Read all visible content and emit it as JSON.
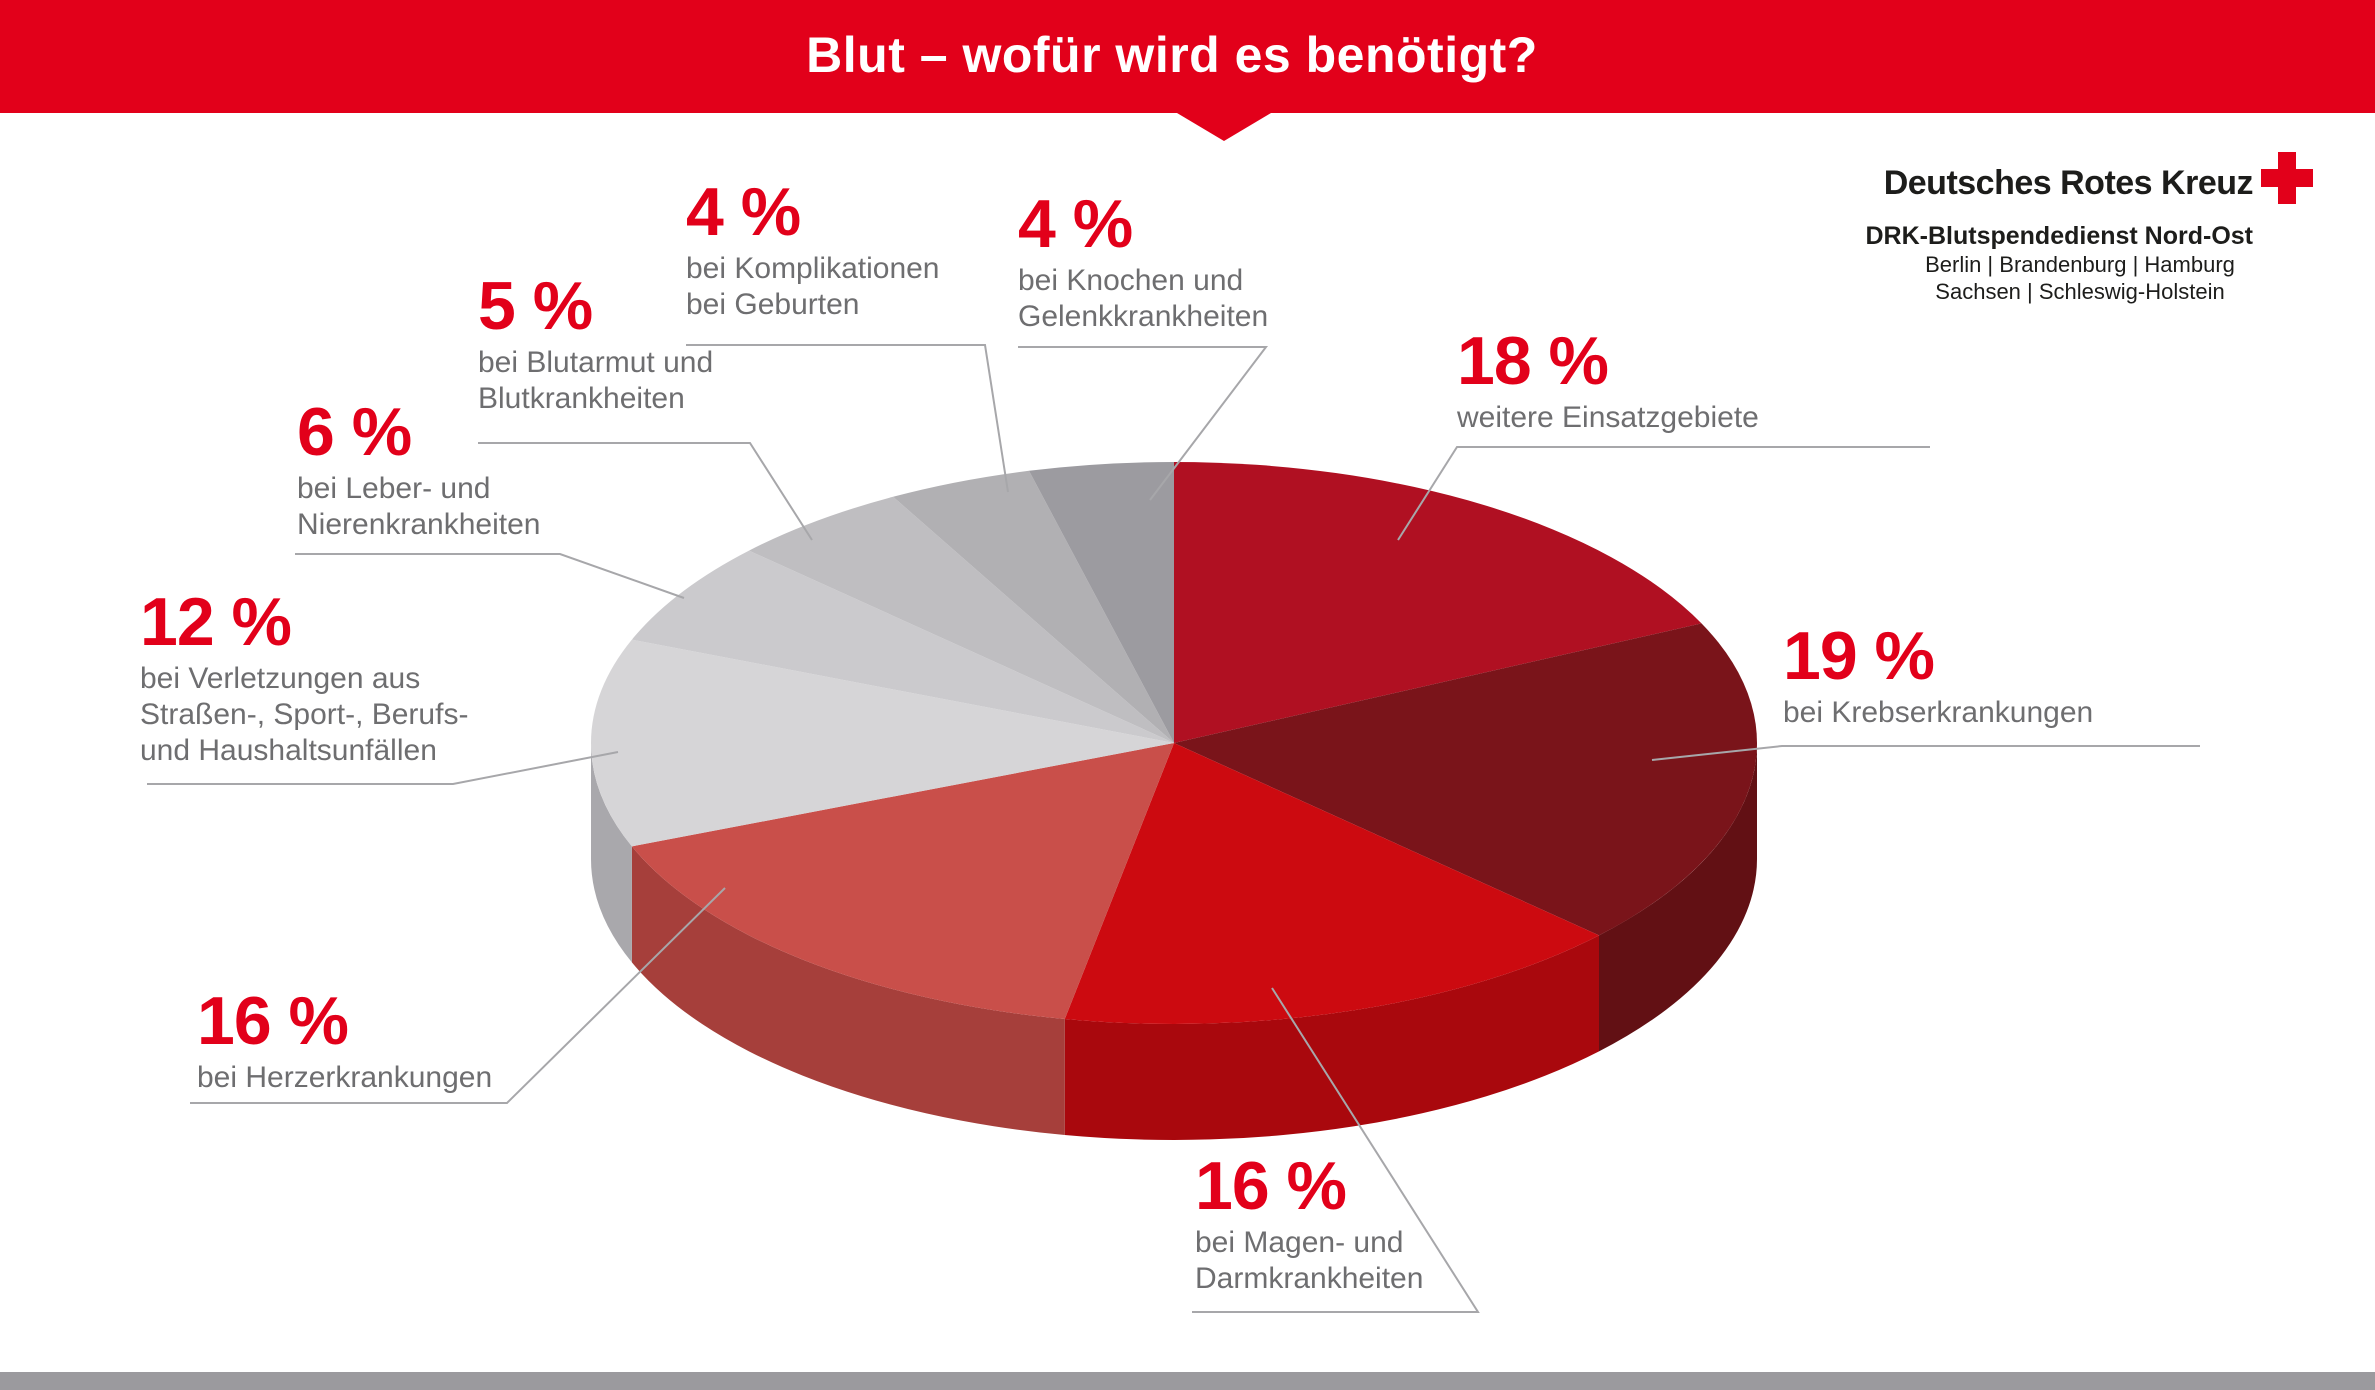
{
  "header": {
    "title": "Blut – wofür wird es benötigt?",
    "bar_color": "#e2001a"
  },
  "logo": {
    "org": "Deutsches Rotes Kreuz",
    "suborg": "DRK-Blutspendedienst Nord-Ost",
    "regions_line1": "Berlin | Brandenburg | Hamburg",
    "regions_line2": "Sachsen | Schleswig-Holstein",
    "cross_icon_color": "#e2001a"
  },
  "chart_data": {
    "type": "pie",
    "style": "3d-ellipse",
    "title": "Blut – wofür wird es benötigt?",
    "unit": "%",
    "total": 100,
    "start_angle": "12 o'clock",
    "direction": "clockwise",
    "legend_position": "callouts-around-pie",
    "grid": false,
    "slices": [
      {
        "id": "weitere-einsatzgebiete",
        "value": 18,
        "pct": "18 %",
        "lines": [
          "weitere Einsatzgebiete"
        ],
        "label": "weitere Einsatzgebiete",
        "color": "#b01022",
        "wall": "#8d0d1b"
      },
      {
        "id": "krebserkrankungen",
        "value": 19,
        "pct": "19 %",
        "lines": [
          "bei Krebserkrankungen"
        ],
        "label": "bei Krebserkrankungen",
        "color": "#7a141a",
        "wall": "#621014"
      },
      {
        "id": "magen-darm",
        "value": 16,
        "pct": "16 %",
        "lines": [
          "bei Magen- und",
          "Darmkrankheiten"
        ],
        "label": "bei Magen- und Darmkrankheiten",
        "color": "#cc0a10",
        "wall": "#a9080d"
      },
      {
        "id": "herz",
        "value": 16,
        "pct": "16 %",
        "lines": [
          "bei Herzerkrankungen"
        ],
        "label": "bei Herzerkrankungen",
        "color": "#c94f4a",
        "wall": "#a63f3b"
      },
      {
        "id": "verletzungen",
        "value": 12,
        "pct": "12 %",
        "lines": [
          "bei Verletzungen aus",
          "Straßen-, Sport-, Berufs-",
          "und Haushaltsunfällen"
        ],
        "label": "bei Verletzungen aus Straßen-, Sport-, Berufs- und Haushaltsunfällen",
        "color": "#d6d5d7",
        "wall": "#a9a8ac"
      },
      {
        "id": "leber-niere",
        "value": 6,
        "pct": "6 %",
        "lines": [
          "bei Leber- und",
          "Nierenkrankheiten"
        ],
        "label": "bei Leber- und Nierenkrankheiten",
        "color": "#cbcacd",
        "wall": "#a2a1a5"
      },
      {
        "id": "blutarmut",
        "value": 5,
        "pct": "5 %",
        "lines": [
          "bei Blutarmut und",
          "Blutkrankheiten"
        ],
        "label": "bei Blutarmut und Blutkrankheiten",
        "color": "#bfbec1",
        "wall": "#98979b"
      },
      {
        "id": "geburten",
        "value": 4,
        "pct": "4 %",
        "lines": [
          "bei Komplikationen",
          "bei Geburten"
        ],
        "label": "bei Komplikationen bei Geburten",
        "color": "#b1b0b3",
        "wall": "#8d8c90"
      },
      {
        "id": "knochen-gelenke",
        "value": 4,
        "pct": "4 %",
        "lines": [
          "bei Knochen und",
          "Gelenkkrankheiten"
        ],
        "label": "bei Knochen und Gelenkkrankheiten",
        "color": "#9c9ba0",
        "wall": "#7c7b80"
      }
    ],
    "colors": {
      "accent_red": "#e2001a",
      "label_text": "#6e6e70",
      "leader_line": "#a7a7aa",
      "bottom_bar": "#9b9a9e"
    }
  }
}
